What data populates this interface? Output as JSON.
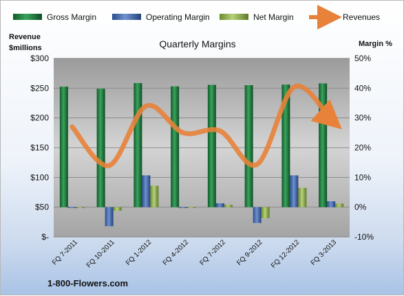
{
  "chart_data": {
    "type": "bar",
    "title": "Quarterly Margins",
    "categories": [
      "FQ 7-2011",
      "FQ 10-2011",
      "FQ 1-2012",
      "FQ 4-2012",
      "FQ 7-2012",
      "FQ 9-2012",
      "FQ 12-2012",
      "FQ 3-2013"
    ],
    "ylabel_left": "Revenue\n$millions",
    "ylabel_right": "Margin %",
    "ylim_left": [
      0,
      300
    ],
    "ylim_right": [
      -10,
      50
    ],
    "yticks_left": [
      "$-",
      "$50",
      "$100",
      "$150",
      "$200",
      "$250",
      "$300"
    ],
    "yticks_right": [
      "-10%",
      "0%",
      "10%",
      "20%",
      "30%",
      "40%",
      "50%"
    ],
    "series": [
      {
        "name": "Gross Margin",
        "axis": "right",
        "kind": "bar",
        "color": "#1e7a3e",
        "values": [
          40.5,
          39.8,
          41.7,
          40.6,
          41.1,
          41.0,
          41.2,
          41.6
        ]
      },
      {
        "name": "Operating Margin",
        "axis": "right",
        "kind": "bar",
        "color": "#3a5fa5",
        "values": [
          -0.3,
          -6.4,
          10.7,
          -0.3,
          1.3,
          -5.3,
          10.7,
          2.0
        ]
      },
      {
        "name": "Net Margin",
        "axis": "right",
        "kind": "bar",
        "color": "#8fae4a",
        "values": [
          -0.3,
          -1.2,
          7.2,
          -0.3,
          0.8,
          -3.7,
          6.5,
          1.2
        ]
      },
      {
        "name": "Revenues",
        "axis": "left",
        "kind": "line",
        "color": "#e8823a",
        "values": [
          185,
          120,
          220,
          175,
          178,
          122,
          252,
          197
        ]
      }
    ],
    "grid": true,
    "legend_position": "top",
    "source_label": "1-800-Flowers.com"
  }
}
